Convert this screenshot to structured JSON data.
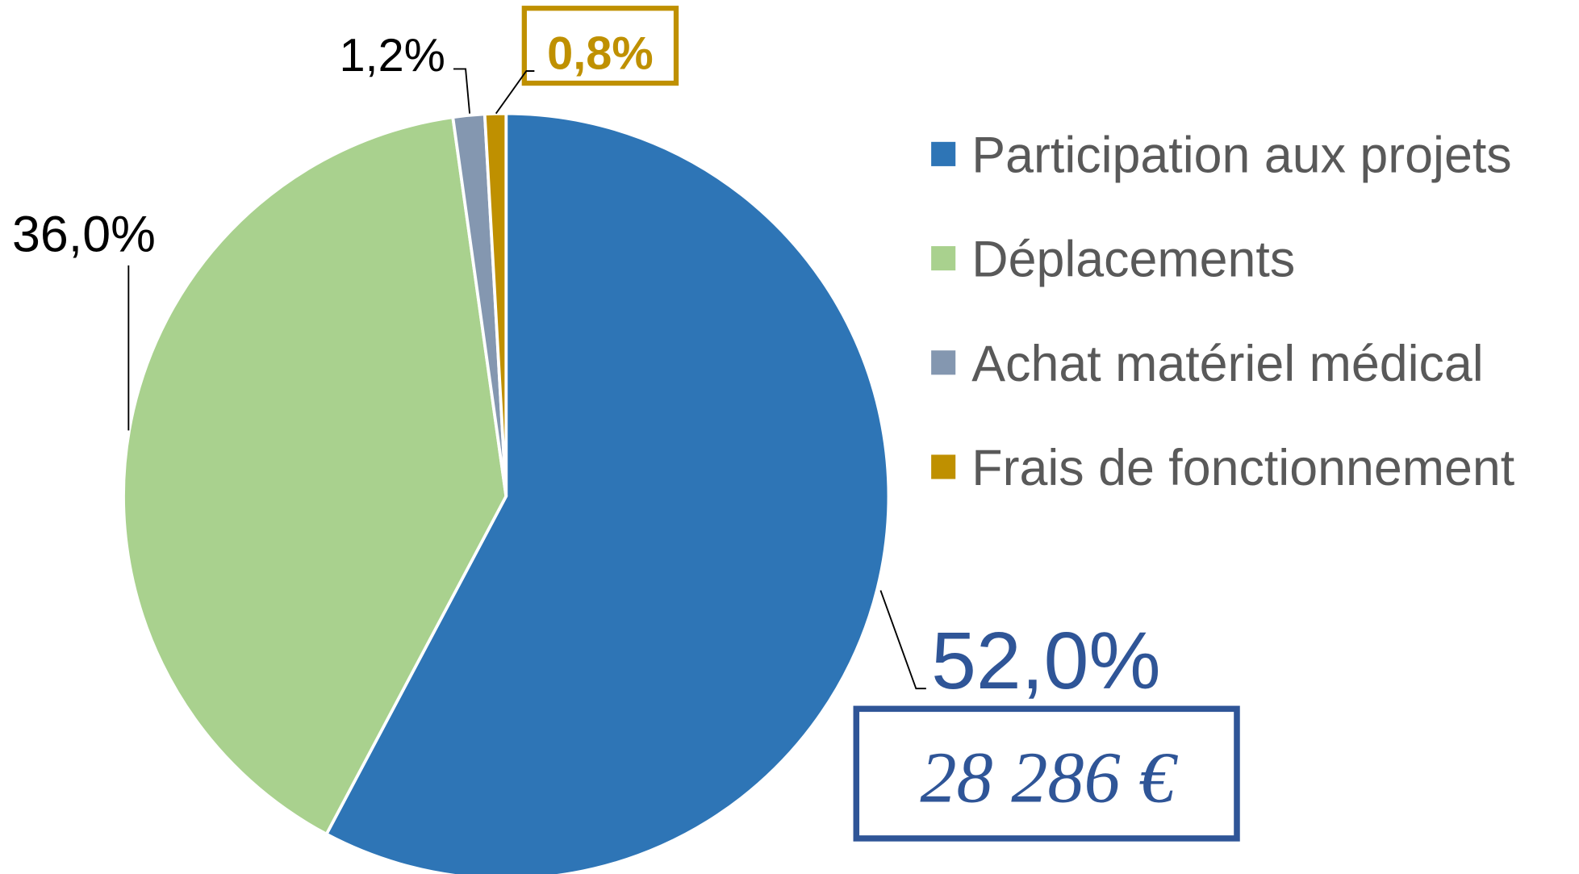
{
  "chart_data": {
    "type": "pie",
    "categories": [
      "Participation aux projets",
      "Déplacements",
      "Achat matériel médical",
      "Frais de fonctionnement"
    ],
    "values": [
      52.0,
      36.0,
      1.2,
      0.8
    ],
    "value_labels": [
      "52,0%",
      "36,0%",
      "1,2%",
      "0,8%"
    ],
    "colors": [
      "#2e75b6",
      "#a9d18e",
      "#8497b0",
      "#bf9000"
    ],
    "annotation": "28 286 €",
    "legend": "right"
  }
}
